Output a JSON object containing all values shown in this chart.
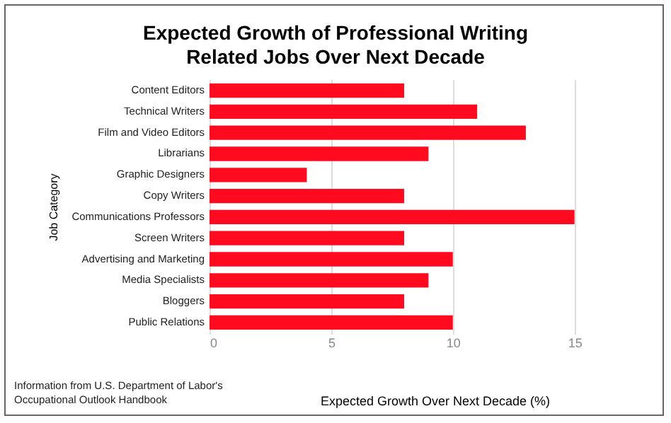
{
  "chart_data": {
    "type": "bar",
    "orientation": "horizontal",
    "title": "Expected Growth of Professional Writing\nRelated Jobs Over Next Decade",
    "xlabel": "Expected Growth Over Next Decade (%)",
    "ylabel": "Job Category",
    "categories": [
      "Content Editors",
      "Technical Writers",
      "Film and Video Editors",
      "Librarians",
      "Graphic Designers",
      "Copy Writers",
      "Communications Professors",
      "Screen Writers",
      "Advertising and Marketing",
      "Media Specialists",
      "Bloggers",
      "Public Relations"
    ],
    "values": [
      8,
      11,
      13,
      9,
      4,
      8,
      15,
      8,
      10,
      9,
      8,
      10
    ],
    "color": "#ff0a1e",
    "xlim": [
      0,
      18.5
    ],
    "xticks": [
      0,
      5,
      10,
      15
    ],
    "grid": "x",
    "annotations": [
      "Information from U.S. Department of Labor's\nOccupational Outlook Handbook"
    ]
  }
}
